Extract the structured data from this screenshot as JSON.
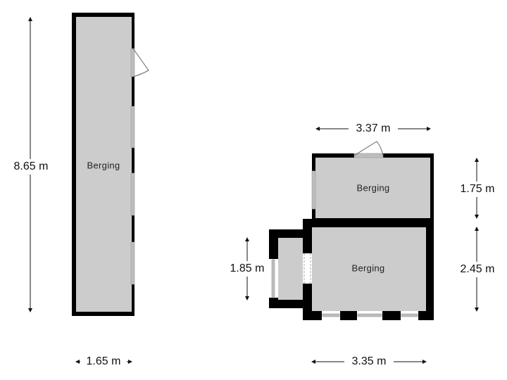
{
  "rooms": [
    {
      "label": "Berging"
    },
    {
      "label": "Berging"
    },
    {
      "label": "Berging"
    }
  ],
  "dimensions": {
    "left_height": "8.65 m",
    "left_width": "1.65 m",
    "top_width": "3.37 m",
    "upper_room_height": "1.75 m",
    "lower_room_height": "2.45 m",
    "annex_height": "1.85 m",
    "bottom_width": "3.35 m"
  },
  "colors": {
    "wall": "#000000",
    "floor": "#cccccc",
    "window": "#bdbdbd"
  }
}
